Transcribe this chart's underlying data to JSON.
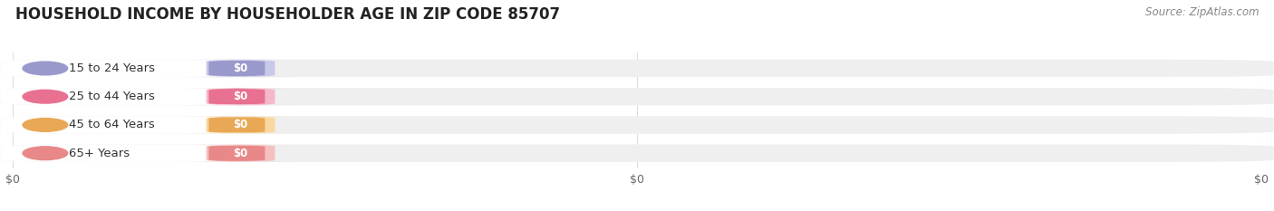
{
  "title": "HOUSEHOLD INCOME BY HOUSEHOLDER AGE IN ZIP CODE 85707",
  "source": "Source: ZipAtlas.com",
  "categories": [
    "15 to 24 Years",
    "25 to 44 Years",
    "45 to 64 Years",
    "65+ Years"
  ],
  "values": [
    0,
    0,
    0,
    0
  ],
  "bar_colors": [
    "#9999cc",
    "#e87090",
    "#e8a855",
    "#e88888"
  ],
  "label_bg_colors": [
    "#c8c8e8",
    "#f5b8c8",
    "#f8d8a0",
    "#f5c0c0"
  ],
  "bar_bg_color": "#efefef",
  "background_color": "#ffffff",
  "value_labels": [
    "$0",
    "$0",
    "$0",
    "$0"
  ],
  "x_tick_labels": [
    "$0",
    "$0",
    "$0"
  ],
  "x_tick_positions": [
    0,
    0.5,
    1.0
  ],
  "title_fontsize": 12,
  "source_fontsize": 8.5,
  "label_fontsize": 9.5,
  "value_fontsize": 8.5
}
